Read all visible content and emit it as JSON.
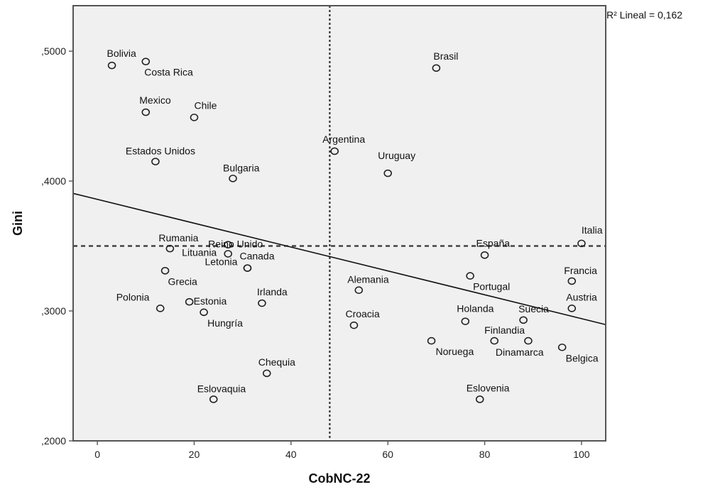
{
  "chart_data": {
    "type": "scatter",
    "xlabel": "CobNC-22",
    "ylabel": "Gini",
    "xlim": [
      -5,
      105
    ],
    "ylim": [
      0.2,
      0.535
    ],
    "x_ticks": [
      {
        "value": 0,
        "label": "0"
      },
      {
        "value": 20,
        "label": "20"
      },
      {
        "value": 40,
        "label": "40"
      },
      {
        "value": 60,
        "label": "60"
      },
      {
        "value": 80,
        "label": "80"
      },
      {
        "value": 100,
        "label": "100"
      }
    ],
    "y_ticks": [
      {
        "value": 0.2,
        "label": ",2000"
      },
      {
        "value": 0.3,
        "label": ",3000"
      },
      {
        "value": 0.4,
        "label": ",4000"
      },
      {
        "value": 0.5,
        "label": ",5000"
      }
    ],
    "fit_line": {
      "label": "R² Lineal = 0,162",
      "y_at_xmin": 0.3905,
      "y_at_xmax": 0.2895
    },
    "mean_x": 48,
    "mean_y": 0.35,
    "grid": false,
    "points": [
      {
        "name": "Bolivia",
        "x": 3,
        "y": 0.489
      },
      {
        "name": "Costa Rica",
        "x": 10,
        "y": 0.492
      },
      {
        "name": "Brasil",
        "x": 70,
        "y": 0.487
      },
      {
        "name": "Mexico",
        "x": 10,
        "y": 0.453
      },
      {
        "name": "Chile",
        "x": 20,
        "y": 0.449
      },
      {
        "name": "Argentina",
        "x": 49,
        "y": 0.423
      },
      {
        "name": "Estados Unidos",
        "x": 12,
        "y": 0.415
      },
      {
        "name": "Uruguay",
        "x": 60,
        "y": 0.406
      },
      {
        "name": "Bulgaria",
        "x": 28,
        "y": 0.402
      },
      {
        "name": "Reino Unido",
        "x": 27,
        "y": 0.351
      },
      {
        "name": "Italia",
        "x": 100,
        "y": 0.352
      },
      {
        "name": "Rumania",
        "x": 15,
        "y": 0.348
      },
      {
        "name": "Lituania",
        "x": 27,
        "y": 0.344
      },
      {
        "name": "España",
        "x": 80,
        "y": 0.343
      },
      {
        "name": "Letonia",
        "x": 31,
        "y": 0.333
      },
      {
        "name": "Canada",
        "x": 31,
        "y": 0.333
      },
      {
        "name": "Grecia",
        "x": 14,
        "y": 0.331
      },
      {
        "name": "Portugal",
        "x": 77,
        "y": 0.327
      },
      {
        "name": "Francia",
        "x": 98,
        "y": 0.323
      },
      {
        "name": "Alemania",
        "x": 54,
        "y": 0.316
      },
      {
        "name": "Irlanda",
        "x": 34,
        "y": 0.306
      },
      {
        "name": "Estonia",
        "x": 19,
        "y": 0.307
      },
      {
        "name": "Polonia",
        "x": 13,
        "y": 0.302
      },
      {
        "name": "Austria",
        "x": 98,
        "y": 0.302
      },
      {
        "name": "Hungría",
        "x": 22,
        "y": 0.299
      },
      {
        "name": "Holanda",
        "x": 76,
        "y": 0.292
      },
      {
        "name": "Suecia",
        "x": 88,
        "y": 0.293
      },
      {
        "name": "Croacia",
        "x": 53,
        "y": 0.289
      },
      {
        "name": "Noruega",
        "x": 69,
        "y": 0.277
      },
      {
        "name": "Finlandia",
        "x": 82,
        "y": 0.277
      },
      {
        "name": "Dinamarca",
        "x": 89,
        "y": 0.277
      },
      {
        "name": "Belgica",
        "x": 96,
        "y": 0.272
      },
      {
        "name": "Chequia",
        "x": 35,
        "y": 0.252
      },
      {
        "name": "Eslovaquia",
        "x": 24,
        "y": 0.232
      },
      {
        "name": "Eslovenia",
        "x": 79,
        "y": 0.232
      }
    ]
  }
}
